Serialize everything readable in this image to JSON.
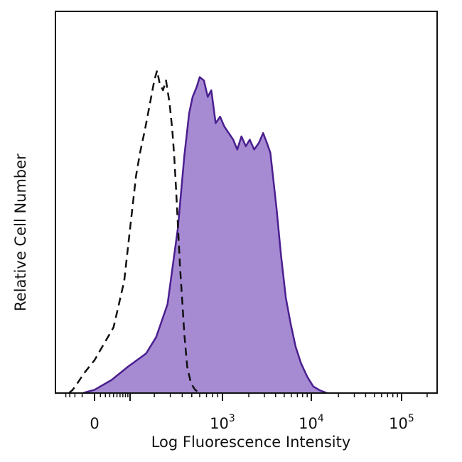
{
  "chart_data": {
    "type": "area",
    "xlabel": "Log Fluorescence Intensity",
    "ylabel": "Relative Cell Number",
    "x_scale": "biexponential",
    "tick_labels": [
      {
        "value": 0,
        "base": "0",
        "exp": ""
      },
      {
        "value": 1000,
        "base": "10",
        "exp": "3"
      },
      {
        "value": 10000,
        "base": "10",
        "exp": "4"
      },
      {
        "value": 100000,
        "base": "10",
        "exp": "5"
      }
    ],
    "ylim": [
      0,
      100
    ],
    "grid": false,
    "series": [
      {
        "style": "filled",
        "fill": "#a68bd3",
        "stroke": "#4a1f8f",
        "points": [
          [
            -45,
            0
          ],
          [
            -20,
            0.5
          ],
          [
            0,
            1
          ],
          [
            35,
            4
          ],
          [
            90,
            8
          ],
          [
            160,
            12
          ],
          [
            210,
            17
          ],
          [
            280,
            27
          ],
          [
            360,
            50
          ],
          [
            420,
            72
          ],
          [
            470,
            85
          ],
          [
            510,
            90
          ],
          [
            560,
            93
          ],
          [
            600,
            96
          ],
          [
            660,
            95
          ],
          [
            720,
            90
          ],
          [
            780,
            92
          ],
          [
            860,
            82
          ],
          [
            950,
            84
          ],
          [
            1050,
            81
          ],
          [
            1180,
            79
          ],
          [
            1330,
            77
          ],
          [
            1480,
            74
          ],
          [
            1650,
            78
          ],
          [
            1850,
            75
          ],
          [
            2050,
            77
          ],
          [
            2300,
            74
          ],
          [
            2600,
            76
          ],
          [
            2900,
            79
          ],
          [
            3200,
            76
          ],
          [
            3500,
            73
          ],
          [
            4100,
            56
          ],
          [
            4600,
            42
          ],
          [
            5200,
            29
          ],
          [
            5900,
            21
          ],
          [
            6700,
            14
          ],
          [
            7700,
            9
          ],
          [
            9000,
            5
          ],
          [
            10500,
            2
          ],
          [
            12500,
            0.8
          ],
          [
            15000,
            0
          ]
        ]
      },
      {
        "style": "dashed",
        "stroke": "#111111",
        "points": [
          [
            -160,
            0
          ],
          [
            -120,
            1
          ],
          [
            -80,
            3
          ],
          [
            -40,
            6
          ],
          [
            0,
            10
          ],
          [
            40,
            20
          ],
          [
            75,
            34
          ],
          [
            100,
            50
          ],
          [
            120,
            66
          ],
          [
            135,
            73
          ],
          [
            155,
            80
          ],
          [
            175,
            87
          ],
          [
            200,
            95
          ],
          [
            215,
            98
          ],
          [
            230,
            94
          ],
          [
            250,
            92
          ],
          [
            270,
            95
          ],
          [
            295,
            88
          ],
          [
            315,
            80
          ],
          [
            330,
            72
          ],
          [
            345,
            62
          ],
          [
            365,
            48
          ],
          [
            380,
            38
          ],
          [
            400,
            28
          ],
          [
            420,
            18
          ],
          [
            450,
            8
          ],
          [
            490,
            3
          ],
          [
            540,
            1
          ],
          [
            600,
            0
          ]
        ]
      }
    ]
  }
}
